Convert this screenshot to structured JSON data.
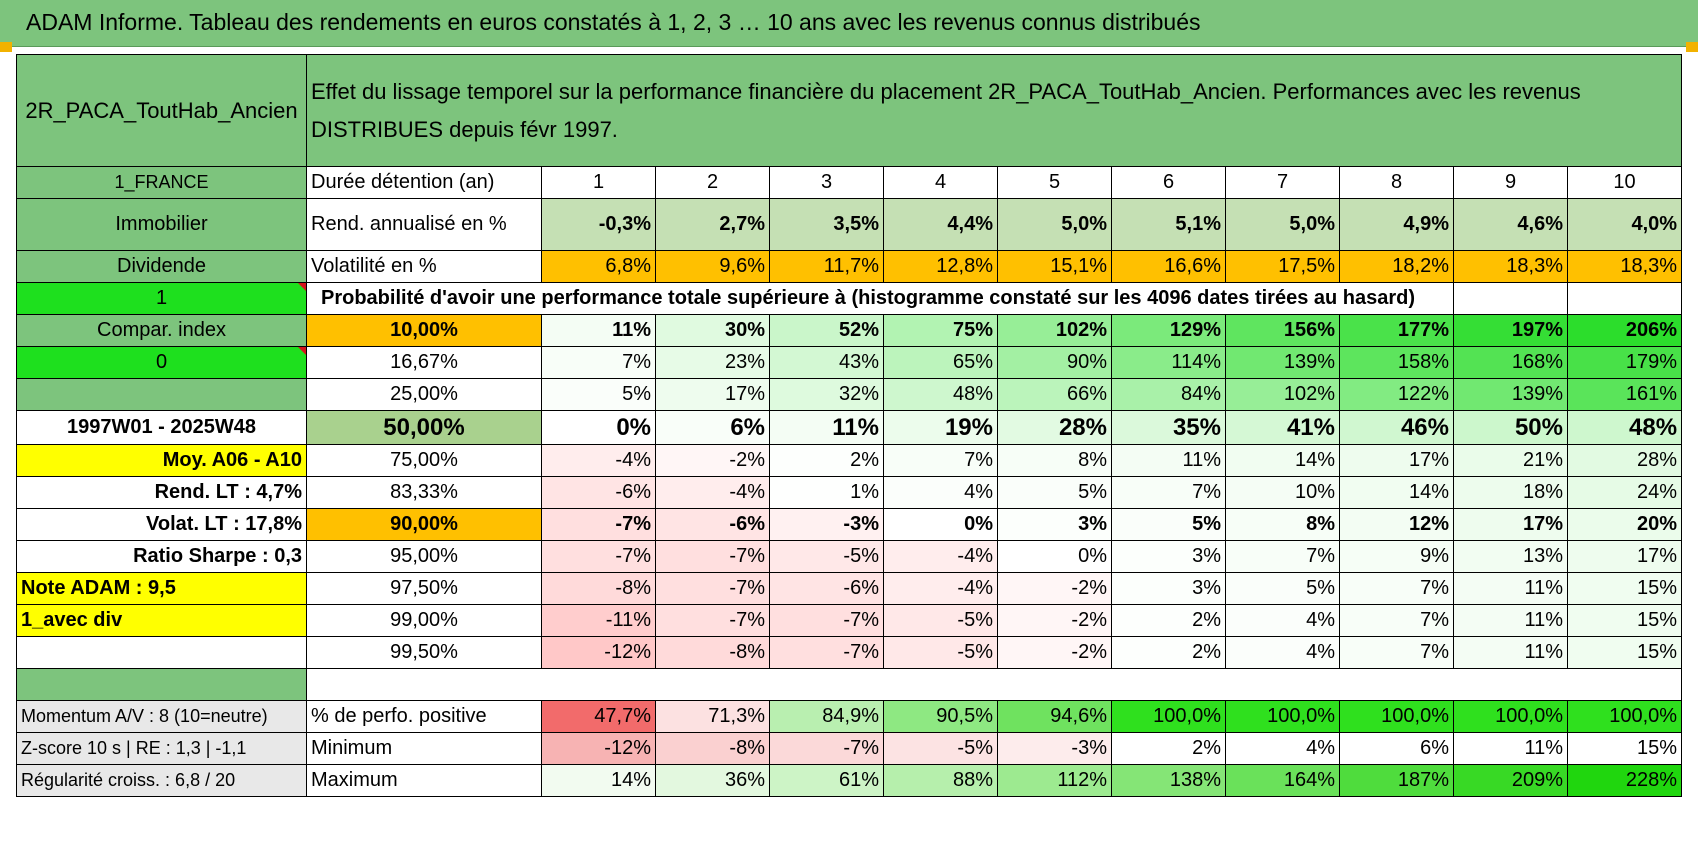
{
  "title": "ADAM Informe. Tableau des rendements en euros constatés à 1, 2, 3 … 10 ans avec les revenus connus distribués",
  "fund_name": "2R_PACA_ToutHab_Ancien",
  "description": "Effet du lissage temporel sur la performance financière du placement 2R_PACA_ToutHab_Ancien. Performances avec les revenus DISTRIBUES depuis févr 1997.",
  "left_labels": {
    "country": "1_FRANCE",
    "asset_class": "Immobilier",
    "income_type": "Dividende",
    "flag1": "1",
    "compar_index": "Compar. index",
    "flag0": "0",
    "blank": "",
    "period": "1997W01 - 2025W48",
    "moy": "Moy. A06 - A10",
    "rend_lt": "Rend. LT :    4,7%",
    "volat_lt": "Volat. LT :    17,8%",
    "sharpe": "Ratio Sharpe :     0,3",
    "note": "Note ADAM : 9,5",
    "avec_div": "1_avec div",
    "momentum": "Momentum A/V : 8 (10=neutre)",
    "zscore": "Z-score 10 s | RE : 1,3 | -1,1",
    "regularite": "Régularité croiss. : 6,8 / 20"
  },
  "holding_label": "Durée détention (an)",
  "years": [
    "1",
    "2",
    "3",
    "4",
    "5",
    "6",
    "7",
    "8",
    "9",
    "10"
  ],
  "rend_label": "Rend. annualisé en %",
  "rend": [
    "-0,3%",
    "2,7%",
    "3,5%",
    "4,4%",
    "5,0%",
    "5,1%",
    "5,0%",
    "4,9%",
    "4,6%",
    "4,0%"
  ],
  "vol_label": "Volatilité en %",
  "vol": [
    "6,8%",
    "9,6%",
    "11,7%",
    "12,8%",
    "15,1%",
    "16,6%",
    "17,5%",
    "18,2%",
    "18,3%",
    "18,3%"
  ],
  "prob_header": "Probabilité d'avoir une performance totale supérieure à (histogramme constaté sur les 4096 dates tirées au hasard)",
  "prob_rows": [
    {
      "p": "10,00%",
      "v": [
        "11%",
        "30%",
        "52%",
        "75%",
        "102%",
        "129%",
        "156%",
        "177%",
        "197%",
        "206%"
      ]
    },
    {
      "p": "16,67%",
      "v": [
        "7%",
        "23%",
        "43%",
        "65%",
        "90%",
        "114%",
        "139%",
        "158%",
        "168%",
        "179%"
      ]
    },
    {
      "p": "25,00%",
      "v": [
        "5%",
        "17%",
        "32%",
        "48%",
        "66%",
        "84%",
        "102%",
        "122%",
        "139%",
        "161%"
      ]
    },
    {
      "p": "50,00%",
      "v": [
        "0%",
        "6%",
        "11%",
        "19%",
        "28%",
        "35%",
        "41%",
        "46%",
        "50%",
        "48%"
      ]
    },
    {
      "p": "75,00%",
      "v": [
        "-4%",
        "-2%",
        "2%",
        "7%",
        "8%",
        "11%",
        "14%",
        "17%",
        "21%",
        "28%"
      ]
    },
    {
      "p": "83,33%",
      "v": [
        "-6%",
        "-4%",
        "1%",
        "4%",
        "5%",
        "7%",
        "10%",
        "14%",
        "18%",
        "24%"
      ]
    },
    {
      "p": "90,00%",
      "v": [
        "-7%",
        "-6%",
        "-3%",
        "0%",
        "3%",
        "5%",
        "8%",
        "12%",
        "17%",
        "20%"
      ]
    },
    {
      "p": "95,00%",
      "v": [
        "-7%",
        "-7%",
        "-5%",
        "-4%",
        "0%",
        "3%",
        "7%",
        "9%",
        "13%",
        "17%"
      ]
    },
    {
      "p": "97,50%",
      "v": [
        "-8%",
        "-7%",
        "-6%",
        "-4%",
        "-2%",
        "3%",
        "5%",
        "7%",
        "11%",
        "15%"
      ]
    },
    {
      "p": "99,00%",
      "v": [
        "-11%",
        "-7%",
        "-7%",
        "-5%",
        "-2%",
        "2%",
        "4%",
        "7%",
        "11%",
        "15%"
      ]
    },
    {
      "p": "99,50%",
      "v": [
        "-12%",
        "-8%",
        "-7%",
        "-5%",
        "-2%",
        "2%",
        "4%",
        "7%",
        "11%",
        "15%"
      ]
    }
  ],
  "positive_label": "% de perfo. positive",
  "positive": [
    "47,7%",
    "71,3%",
    "84,9%",
    "90,5%",
    "94,6%",
    "100,0%",
    "100,0%",
    "100,0%",
    "100,0%",
    "100,0%"
  ],
  "min_label": "Minimum",
  "minimum": [
    "-12%",
    "-8%",
    "-7%",
    "-5%",
    "-3%",
    "2%",
    "4%",
    "6%",
    "11%",
    "15%"
  ],
  "max_label": "Maximum",
  "maximum": [
    "14%",
    "36%",
    "61%",
    "88%",
    "112%",
    "138%",
    "164%",
    "187%",
    "209%",
    "228%"
  ],
  "colors": {
    "header_green": "#7dc47d",
    "bright_green": "#1ee01e",
    "orange": "#ffc000",
    "yellow": "#ffff00",
    "red_text": "#d4141b"
  }
}
